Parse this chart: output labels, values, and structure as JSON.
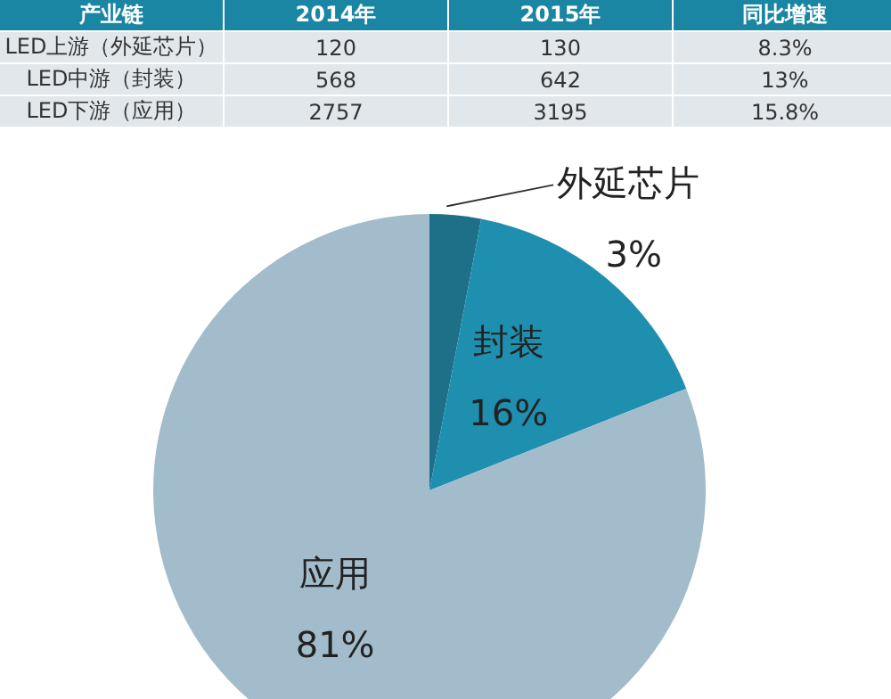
{
  "chart_data": [
    {
      "type": "other",
      "xlabel": "产业链",
      "categories": [
        "LED上游（外延芯片）",
        "LED中游（封装）",
        "LED下游（应用）"
      ],
      "series": [
        {
          "name": "2014年",
          "values": [
            120,
            568,
            2757
          ]
        },
        {
          "name": "2015年",
          "values": [
            130,
            642,
            3195
          ]
        },
        {
          "name": "同比增速",
          "values": [
            8.3,
            13,
            15.8
          ],
          "value_labels": [
            "8.3%",
            "13%",
            "15.8%"
          ]
        }
      ],
      "data_labels": true
    },
    {
      "type": "pie",
      "categories": [
        "外延芯片",
        "封装",
        "应用"
      ],
      "values": [
        3,
        16,
        81
      ],
      "value_labels": [
        "3%",
        "16%",
        "81%"
      ],
      "colors": [
        "#1d7088",
        "#1f8fb0",
        "#a2bccb"
      ]
    }
  ]
}
